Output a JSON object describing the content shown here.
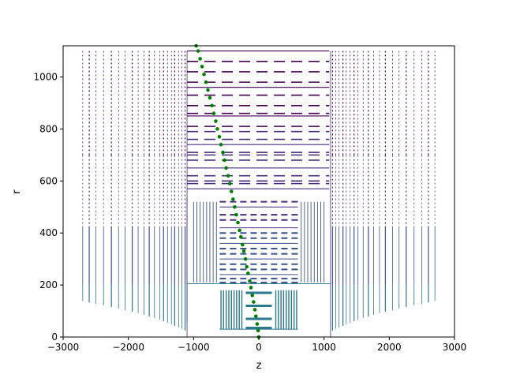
{
  "chart_data": {
    "type": "scatter",
    "title": "",
    "xlabel": "z",
    "ylabel": "r",
    "xlim": [
      -3000,
      3000
    ],
    "ylim": [
      0,
      1120
    ],
    "xticks": [
      -3000,
      -2000,
      -1000,
      0,
      1000,
      2000,
      3000
    ],
    "yticks": [
      0,
      200,
      400,
      600,
      800,
      1000
    ],
    "xtick_labels": [
      "−3000",
      "−2000",
      "−1000",
      "0",
      "1000",
      "2000",
      "3000"
    ],
    "ytick_labels": [
      "0",
      "200",
      "400",
      "600",
      "800",
      "1000"
    ],
    "grid": false,
    "legend": "none",
    "colors": {
      "track": "#008000",
      "detector_inner": "#2a788e",
      "detector_mid": "#3b528b",
      "detector_outer": "#472d7b",
      "detector_far": "#440154"
    },
    "series": [
      {
        "values": [
          [
            0,
            0
          ],
          [
            -10,
            25
          ],
          [
            -25,
            50
          ],
          [
            -45,
            80
          ],
          [
            -60,
            105
          ],
          [
            -80,
            135
          ],
          [
            -100,
            160
          ],
          [
            -120,
            190
          ],
          [
            -140,
            215
          ],
          [
            -165,
            245
          ],
          [
            -185,
            270
          ],
          [
            -205,
            300
          ],
          [
            -230,
            330
          ],
          [
            -250,
            355
          ],
          [
            -275,
            385
          ],
          [
            -295,
            410
          ],
          [
            -320,
            440
          ],
          [
            -345,
            470
          ],
          [
            -370,
            500
          ],
          [
            -395,
            530
          ],
          [
            -420,
            560
          ],
          [
            -445,
            590
          ],
          [
            -470,
            620
          ],
          [
            -500,
            650
          ],
          [
            -525,
            680
          ],
          [
            -550,
            710
          ],
          [
            -580,
            740
          ],
          [
            -605,
            770
          ],
          [
            -635,
            800
          ],
          [
            -660,
            830
          ],
          [
            -690,
            860
          ],
          [
            -720,
            890
          ],
          [
            -750,
            920
          ],
          [
            -780,
            950
          ],
          [
            -810,
            980
          ],
          [
            -840,
            1010
          ],
          [
            -870,
            1040
          ],
          [
            -900,
            1070
          ],
          [
            -930,
            1100
          ],
          [
            -960,
            1120
          ]
        ]
      }
    ]
  }
}
